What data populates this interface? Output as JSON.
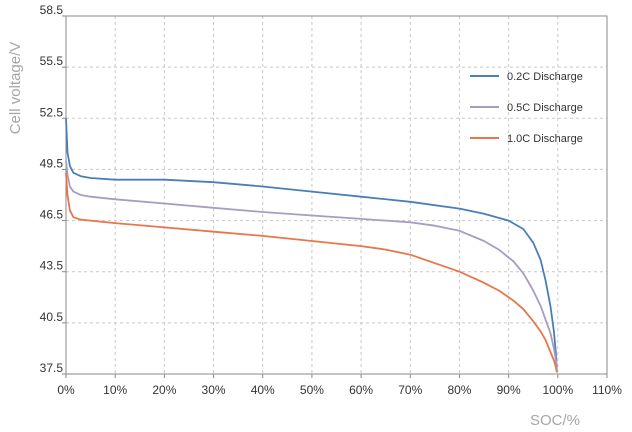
{
  "chart_data": {
    "type": "line",
    "xlabel": "SOC/%",
    "ylabel": "Cell voltage/V",
    "xlim": [
      0,
      110
    ],
    "ylim": [
      37.5,
      58.5
    ],
    "x_ticks": [
      0,
      10,
      20,
      30,
      40,
      50,
      60,
      70,
      80,
      90,
      100,
      110
    ],
    "x_tick_labels": [
      "0%",
      "10%",
      "20%",
      "30%",
      "40%",
      "50%",
      "60%",
      "70%",
      "80%",
      "90%",
      "100%",
      "110%"
    ],
    "y_ticks": [
      37.5,
      40.5,
      43.5,
      46.5,
      49.5,
      52.5,
      55.5,
      58.5
    ],
    "y_tick_labels": [
      "37.5",
      "40.5",
      "43.5",
      "46.5",
      "49.5",
      "52.5",
      "55.5",
      "58.5"
    ],
    "grid": true,
    "legend_position": "top-right",
    "series": [
      {
        "name": "0.2C Discharge",
        "color": "#4a7fb5",
        "x": [
          0,
          0.3,
          0.8,
          1.5,
          3,
          5,
          10,
          20,
          30,
          40,
          50,
          60,
          70,
          80,
          85,
          90,
          93,
          95,
          96.5,
          97.5,
          98.5,
          99.2,
          99.6,
          99.8
        ],
        "y": [
          52.5,
          50.5,
          49.7,
          49.3,
          49.1,
          49.0,
          48.9,
          48.9,
          48.75,
          48.5,
          48.2,
          47.9,
          47.6,
          47.2,
          46.9,
          46.5,
          46.0,
          45.2,
          44.2,
          43.0,
          41.5,
          40.0,
          38.7,
          37.7
        ]
      },
      {
        "name": "0.5C Discharge",
        "color": "#a89cc4",
        "x": [
          0,
          0.3,
          0.8,
          1.5,
          3,
          5,
          10,
          20,
          30,
          40,
          50,
          60,
          70,
          75,
          80,
          85,
          88,
          91,
          93,
          95,
          96.5,
          97.5,
          98.5,
          99.2,
          99.6,
          99.8
        ],
        "y": [
          50.0,
          49.2,
          48.5,
          48.2,
          48.0,
          47.9,
          47.75,
          47.5,
          47.25,
          47.0,
          46.8,
          46.6,
          46.4,
          46.2,
          45.9,
          45.3,
          44.8,
          44.1,
          43.4,
          42.4,
          41.5,
          40.7,
          39.9,
          39.0,
          38.3,
          37.7
        ]
      },
      {
        "name": "1.0C Discharge",
        "color": "#e8764a",
        "x": [
          0,
          0.3,
          0.8,
          1.5,
          3,
          5,
          10,
          20,
          30,
          40,
          50,
          60,
          65,
          70,
          75,
          80,
          85,
          88,
          91,
          93,
          95,
          96.5,
          97.5,
          98.5,
          99.2,
          99.6,
          99.8
        ],
        "y": [
          49.3,
          48.0,
          47.1,
          46.7,
          46.55,
          46.5,
          46.35,
          46.1,
          45.85,
          45.6,
          45.3,
          45.0,
          44.8,
          44.5,
          44.0,
          43.5,
          42.85,
          42.4,
          41.8,
          41.3,
          40.6,
          40.0,
          39.5,
          38.8,
          38.3,
          37.9,
          37.6
        ]
      }
    ]
  }
}
